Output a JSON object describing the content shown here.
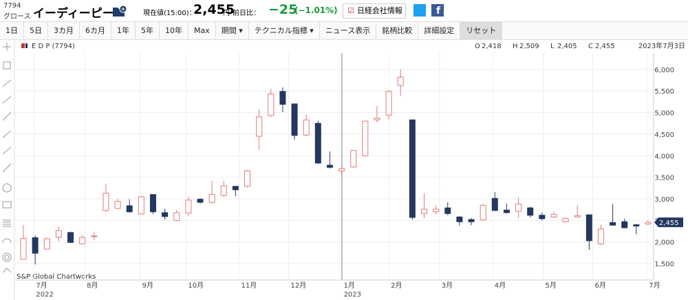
{
  "header": {
    "code": "7794",
    "market": "グロース",
    "name": "イーディーピー",
    "price_label": "現在値(15:00)：",
    "price": "2,455",
    "unit": "円",
    "change_label": "前日比：",
    "change": "−25",
    "change_pct": "(−1.01%)",
    "info_button": "日経会社情報"
  },
  "toolbar": [
    "1日",
    "5日",
    "3カ月",
    "6カ月",
    "1年",
    "5年",
    "10年",
    "Max",
    "期間 ▾",
    "テクニカル指標 ▾",
    "ニュース表示",
    "銘柄比較",
    "詳細設定",
    "リセット"
  ],
  "chart_data": {
    "type": "candlestick",
    "symbol": "E D P (7794)",
    "ohlc_info": [
      {
        "key": "O",
        "value": "2,418"
      },
      {
        "key": "H",
        "value": "2,509"
      },
      {
        "key": "L",
        "value": "2,405"
      },
      {
        "key": "C",
        "value": "2,455"
      }
    ],
    "date": "2023年7月3日",
    "source": "S&P Global Chartworks",
    "up_color": "#e07a7a",
    "down_color": "#23375f",
    "ylim": [
      1310,
      6380
    ],
    "yticks": [
      {
        "value": 1500,
        "label": "1,500"
      },
      {
        "value": 2000,
        "label": "2,000"
      },
      {
        "value": 2500,
        "label": "2,500"
      },
      {
        "value": 3000,
        "label": "3,000"
      },
      {
        "value": 3500,
        "label": "3,500"
      },
      {
        "value": 4000,
        "label": "4,000"
      },
      {
        "value": 4500,
        "label": "4,500"
      },
      {
        "value": 5000,
        "label": "5,000"
      },
      {
        "value": 5500,
        "label": "5,500"
      },
      {
        "value": 6000,
        "label": "6,000"
      }
    ],
    "xticks": [
      {
        "value": 0.9,
        "label": "7月"
      },
      {
        "value": 5.2,
        "label": "8月"
      },
      {
        "value": 9.9,
        "label": "9月"
      },
      {
        "value": 13.8,
        "label": "10月"
      },
      {
        "value": 18.3,
        "label": "11月"
      },
      {
        "value": 22.5,
        "label": "12月"
      },
      {
        "value": 27,
        "label": "1月"
      },
      {
        "value": 31,
        "label": "2月"
      },
      {
        "value": 35.3,
        "label": "3月"
      },
      {
        "value": 39.8,
        "label": "4月"
      },
      {
        "value": 44.1,
        "label": "5月"
      },
      {
        "value": 48.3,
        "label": "6月"
      },
      {
        "value": 52.9,
        "label": "7月"
      }
    ],
    "year_labels": [
      {
        "value": 0.9,
        "label": "2022"
      },
      {
        "value": 27,
        "label": "2023"
      }
    ],
    "last": {
      "value": 2455,
      "label": "2,455"
    },
    "candles": [
      {
        "open": 1600,
        "high": 2400,
        "low": 1600,
        "close": 2080
      },
      {
        "open": 2100,
        "high": 2150,
        "low": 1480,
        "close": 1740
      },
      {
        "open": 1835,
        "high": 2100,
        "low": 1830,
        "close": 2075
      },
      {
        "open": 2110,
        "high": 2360,
        "low": 2025,
        "close": 2265
      },
      {
        "open": 2220,
        "high": 2240,
        "low": 1975,
        "close": 1990
      },
      {
        "open": 1960,
        "high": 2160,
        "low": 1940,
        "close": 2105
      },
      {
        "open": 2130,
        "high": 2230,
        "low": 2040,
        "close": 2140
      },
      {
        "open": 2730,
        "high": 3350,
        "low": 2700,
        "close": 3130
      },
      {
        "open": 2780,
        "high": 3000,
        "low": 2760,
        "close": 2940
      },
      {
        "open": 2840,
        "high": 2990,
        "low": 2680,
        "close": 2700
      },
      {
        "open": 2650,
        "high": 3070,
        "low": 2640,
        "close": 3050
      },
      {
        "open": 3100,
        "high": 3110,
        "low": 2650,
        "close": 2700
      },
      {
        "open": 2680,
        "high": 2770,
        "low": 2520,
        "close": 2590
      },
      {
        "open": 2500,
        "high": 2740,
        "low": 2480,
        "close": 2680
      },
      {
        "open": 2670,
        "high": 3050,
        "low": 2600,
        "close": 2970
      },
      {
        "open": 2990,
        "high": 3020,
        "low": 2890,
        "close": 2920
      },
      {
        "open": 2920,
        "high": 3420,
        "low": 2890,
        "close": 3100
      },
      {
        "open": 3080,
        "high": 3420,
        "low": 3050,
        "close": 3300
      },
      {
        "open": 3290,
        "high": 3300,
        "low": 3060,
        "close": 3210
      },
      {
        "open": 3290,
        "high": 3670,
        "low": 3270,
        "close": 3650
      },
      {
        "open": 4450,
        "high": 5080,
        "low": 4140,
        "close": 4900
      },
      {
        "open": 4930,
        "high": 5550,
        "low": 4900,
        "close": 5430
      },
      {
        "open": 5490,
        "high": 5580,
        "low": 5010,
        "close": 5190
      },
      {
        "open": 5200,
        "high": 5200,
        "low": 4370,
        "close": 4470
      },
      {
        "open": 4480,
        "high": 4950,
        "low": 4450,
        "close": 4830
      },
      {
        "open": 4750,
        "high": 4810,
        "low": 3810,
        "close": 3830
      },
      {
        "open": 3780,
        "high": 4100,
        "low": 3700,
        "close": 3730
      },
      {
        "open": 3650,
        "high": 3760,
        "low": 3550,
        "close": 3700
      },
      {
        "open": 3740,
        "high": 4130,
        "low": 3720,
        "close": 4120
      },
      {
        "open": 4000,
        "high": 4810,
        "low": 3980,
        "close": 4800
      },
      {
        "open": 4830,
        "high": 5150,
        "low": 4770,
        "close": 4870
      },
      {
        "open": 4940,
        "high": 5520,
        "low": 4830,
        "close": 5490
      },
      {
        "open": 5630,
        "high": 6000,
        "low": 5380,
        "close": 5820
      },
      {
        "open": 4830,
        "high": 4830,
        "low": 2520,
        "close": 2570
      },
      {
        "open": 2660,
        "high": 3130,
        "low": 2550,
        "close": 2760
      },
      {
        "open": 2700,
        "high": 2850,
        "low": 2640,
        "close": 2760
      },
      {
        "open": 2790,
        "high": 2920,
        "low": 2620,
        "close": 2660
      },
      {
        "open": 2580,
        "high": 2600,
        "low": 2380,
        "close": 2470
      },
      {
        "open": 2520,
        "high": 2560,
        "low": 2390,
        "close": 2470
      },
      {
        "open": 2510,
        "high": 2880,
        "low": 2500,
        "close": 2850
      },
      {
        "open": 3010,
        "high": 3160,
        "low": 2720,
        "close": 2730
      },
      {
        "open": 2740,
        "high": 2890,
        "low": 2660,
        "close": 2680
      },
      {
        "open": 2710,
        "high": 3030,
        "low": 2560,
        "close": 2880
      },
      {
        "open": 2790,
        "high": 2820,
        "low": 2570,
        "close": 2620
      },
      {
        "open": 2620,
        "high": 2680,
        "low": 2500,
        "close": 2540
      },
      {
        "open": 2580,
        "high": 2700,
        "low": 2560,
        "close": 2640
      },
      {
        "open": 2470,
        "high": 2560,
        "low": 2460,
        "close": 2550
      },
      {
        "open": 2580,
        "high": 2850,
        "low": 2570,
        "close": 2610
      },
      {
        "open": 2630,
        "high": 2640,
        "low": 1820,
        "close": 2030
      },
      {
        "open": 1960,
        "high": 2400,
        "low": 1930,
        "close": 2300
      },
      {
        "open": 2450,
        "high": 2880,
        "low": 2380,
        "close": 2390
      },
      {
        "open": 2470,
        "high": 2540,
        "low": 2320,
        "close": 2330
      },
      {
        "open": 2400,
        "high": 2420,
        "low": 2180,
        "close": 2370
      },
      {
        "open": 2418,
        "high": 2509,
        "low": 2405,
        "close": 2455
      }
    ]
  }
}
